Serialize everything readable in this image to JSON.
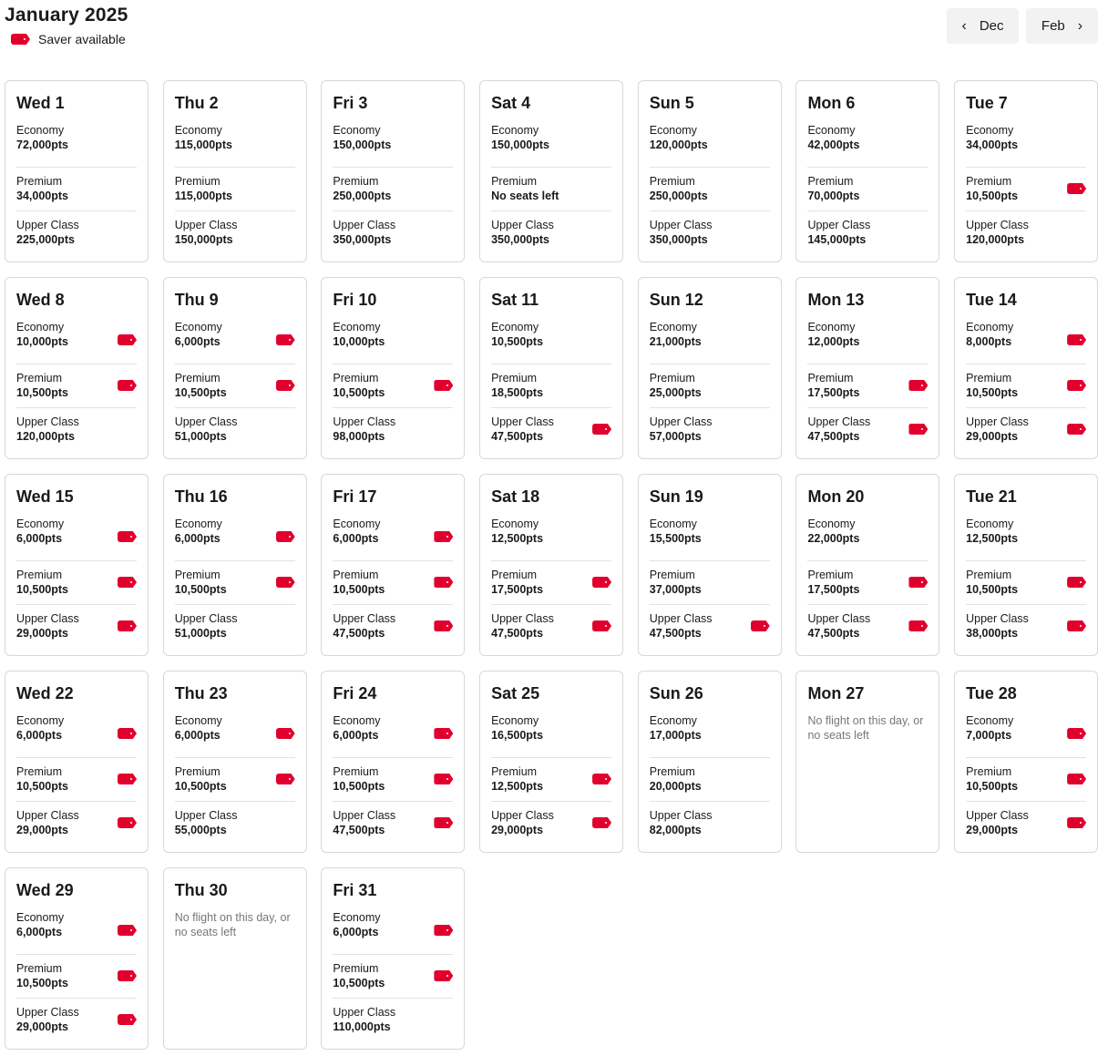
{
  "header": {
    "title": "January 2025",
    "legend_label": "Saver available",
    "prev_label": "Dec",
    "next_label": "Feb"
  },
  "colors": {
    "saver": "#e1002d"
  },
  "labels": {
    "economy": "Economy",
    "premium": "Premium",
    "upper": "Upper Class"
  },
  "days": [
    {
      "day": "Wed 1",
      "classes": [
        [
          "72,000pts",
          false
        ],
        [
          "34,000pts",
          false
        ],
        [
          "225,000pts",
          false
        ]
      ]
    },
    {
      "day": "Thu 2",
      "classes": [
        [
          "115,000pts",
          false
        ],
        [
          "115,000pts",
          false
        ],
        [
          "150,000pts",
          false
        ]
      ]
    },
    {
      "day": "Fri 3",
      "classes": [
        [
          "150,000pts",
          false
        ],
        [
          "250,000pts",
          false
        ],
        [
          "350,000pts",
          false
        ]
      ]
    },
    {
      "day": "Sat 4",
      "classes": [
        [
          "150,000pts",
          false
        ],
        [
          "No seats left",
          false
        ],
        [
          "350,000pts",
          false
        ]
      ]
    },
    {
      "day": "Sun 5",
      "classes": [
        [
          "120,000pts",
          false
        ],
        [
          "250,000pts",
          false
        ],
        [
          "350,000pts",
          false
        ]
      ]
    },
    {
      "day": "Mon 6",
      "classes": [
        [
          "42,000pts",
          false
        ],
        [
          "70,000pts",
          false
        ],
        [
          "145,000pts",
          false
        ]
      ]
    },
    {
      "day": "Tue 7",
      "classes": [
        [
          "34,000pts",
          false
        ],
        [
          "10,500pts",
          true
        ],
        [
          "120,000pts",
          false
        ]
      ]
    },
    {
      "day": "Wed 8",
      "classes": [
        [
          "10,000pts",
          true
        ],
        [
          "10,500pts",
          true
        ],
        [
          "120,000pts",
          false
        ]
      ]
    },
    {
      "day": "Thu 9",
      "classes": [
        [
          "6,000pts",
          true
        ],
        [
          "10,500pts",
          true
        ],
        [
          "51,000pts",
          false
        ]
      ]
    },
    {
      "day": "Fri 10",
      "classes": [
        [
          "10,000pts",
          false
        ],
        [
          "10,500pts",
          true
        ],
        [
          "98,000pts",
          false
        ]
      ]
    },
    {
      "day": "Sat 11",
      "classes": [
        [
          "10,500pts",
          false
        ],
        [
          "18,500pts",
          false
        ],
        [
          "47,500pts",
          true
        ]
      ]
    },
    {
      "day": "Sun 12",
      "classes": [
        [
          "21,000pts",
          false
        ],
        [
          "25,000pts",
          false
        ],
        [
          "57,000pts",
          false
        ]
      ]
    },
    {
      "day": "Mon 13",
      "classes": [
        [
          "12,000pts",
          false
        ],
        [
          "17,500pts",
          true
        ],
        [
          "47,500pts",
          true
        ]
      ]
    },
    {
      "day": "Tue 14",
      "classes": [
        [
          "8,000pts",
          true
        ],
        [
          "10,500pts",
          true
        ],
        [
          "29,000pts",
          true
        ]
      ]
    },
    {
      "day": "Wed 15",
      "classes": [
        [
          "6,000pts",
          true
        ],
        [
          "10,500pts",
          true
        ],
        [
          "29,000pts",
          true
        ]
      ]
    },
    {
      "day": "Thu 16",
      "classes": [
        [
          "6,000pts",
          true
        ],
        [
          "10,500pts",
          true
        ],
        [
          "51,000pts",
          false
        ]
      ]
    },
    {
      "day": "Fri 17",
      "classes": [
        [
          "6,000pts",
          true
        ],
        [
          "10,500pts",
          true
        ],
        [
          "47,500pts",
          true
        ]
      ]
    },
    {
      "day": "Sat 18",
      "classes": [
        [
          "12,500pts",
          false
        ],
        [
          "17,500pts",
          true
        ],
        [
          "47,500pts",
          true
        ]
      ]
    },
    {
      "day": "Sun 19",
      "classes": [
        [
          "15,500pts",
          false
        ],
        [
          "37,000pts",
          false
        ],
        [
          "47,500pts",
          true
        ]
      ]
    },
    {
      "day": "Mon 20",
      "classes": [
        [
          "22,000pts",
          false
        ],
        [
          "17,500pts",
          true
        ],
        [
          "47,500pts",
          true
        ]
      ]
    },
    {
      "day": "Tue 21",
      "classes": [
        [
          "12,500pts",
          false
        ],
        [
          "10,500pts",
          true
        ],
        [
          "38,000pts",
          true
        ]
      ]
    },
    {
      "day": "Wed 22",
      "classes": [
        [
          "6,000pts",
          true
        ],
        [
          "10,500pts",
          true
        ],
        [
          "29,000pts",
          true
        ]
      ]
    },
    {
      "day": "Thu 23",
      "classes": [
        [
          "6,000pts",
          true
        ],
        [
          "10,500pts",
          true
        ],
        [
          "55,000pts",
          false
        ]
      ]
    },
    {
      "day": "Fri 24",
      "classes": [
        [
          "6,000pts",
          true
        ],
        [
          "10,500pts",
          true
        ],
        [
          "47,500pts",
          true
        ]
      ]
    },
    {
      "day": "Sat 25",
      "classes": [
        [
          "16,500pts",
          false
        ],
        [
          "12,500pts",
          true
        ],
        [
          "29,000pts",
          true
        ]
      ]
    },
    {
      "day": "Sun 26",
      "classes": [
        [
          "17,000pts",
          false
        ],
        [
          "20,000pts",
          false
        ],
        [
          "82,000pts",
          false
        ]
      ]
    },
    {
      "day": "Mon 27",
      "no_flight": "No flight on this day, or no seats left"
    },
    {
      "day": "Tue 28",
      "classes": [
        [
          "7,000pts",
          true
        ],
        [
          "10,500pts",
          true
        ],
        [
          "29,000pts",
          true
        ]
      ]
    },
    {
      "day": "Wed 29",
      "classes": [
        [
          "6,000pts",
          true
        ],
        [
          "10,500pts",
          true
        ],
        [
          "29,000pts",
          true
        ]
      ]
    },
    {
      "day": "Thu 30",
      "no_flight": "No flight on this day, or no seats left"
    },
    {
      "day": "Fri 31",
      "classes": [
        [
          "6,000pts",
          true
        ],
        [
          "10,500pts",
          true
        ],
        [
          "110,000pts",
          false
        ]
      ]
    }
  ]
}
